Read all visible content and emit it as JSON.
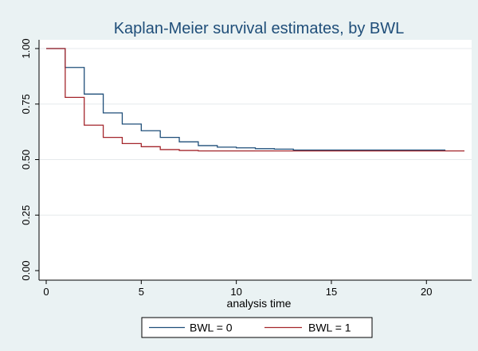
{
  "chart_data": {
    "type": "line",
    "step": true,
    "title": "Kaplan-Meier survival estimates, by BWL",
    "xlabel": "analysis time",
    "ylabel": "",
    "xlim": [
      0,
      22
    ],
    "ylim": [
      0,
      1
    ],
    "x_ticks": [
      0,
      5,
      10,
      15,
      20
    ],
    "x_tick_labels": [
      "0",
      "5",
      "10",
      "15",
      "20"
    ],
    "y_ticks": [
      0,
      0.25,
      0.5,
      0.75,
      1
    ],
    "y_tick_labels": [
      "0.00",
      "0.25",
      "0.50",
      "0.75",
      "1.00"
    ],
    "grid": true,
    "legend_position": "bottom",
    "series": [
      {
        "name": "BWL = 0",
        "color": "#1f4e79",
        "x": [
          0,
          1,
          2,
          3,
          4,
          5,
          6,
          7,
          8,
          9,
          10,
          11,
          12,
          13,
          21
        ],
        "y": [
          1.0,
          0.915,
          0.795,
          0.71,
          0.66,
          0.63,
          0.6,
          0.58,
          0.563,
          0.556,
          0.553,
          0.549,
          0.547,
          0.543,
          0.543
        ]
      },
      {
        "name": "BWL = 1",
        "color": "#a4262c",
        "x": [
          0,
          1,
          2,
          3,
          4,
          5,
          6,
          7,
          8,
          22
        ],
        "y": [
          1.0,
          0.78,
          0.655,
          0.6,
          0.572,
          0.558,
          0.545,
          0.541,
          0.539,
          0.539
        ]
      }
    ]
  }
}
